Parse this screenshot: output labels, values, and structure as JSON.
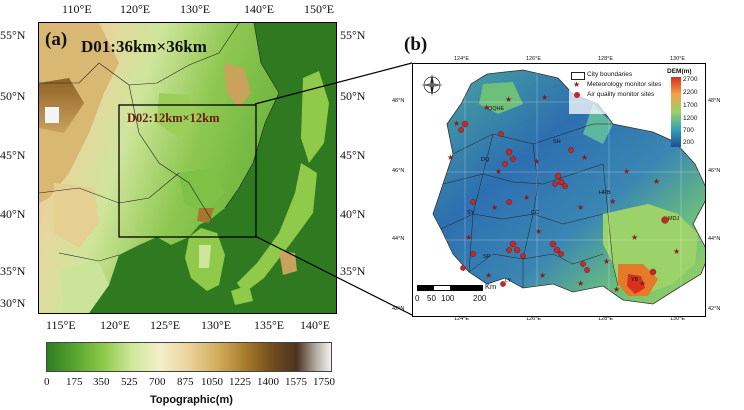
{
  "panel_a": {
    "label": "(a)",
    "d01_label": "D01:36km×36km",
    "d02_label": "D02:12km×12km",
    "top_lon_ticks": [
      "110°E",
      "120°E",
      "130°E",
      "140°E",
      "150°E"
    ],
    "bottom_lon_ticks": [
      "115°E",
      "120°E",
      "125°E",
      "130°E",
      "135°E",
      "140°E"
    ],
    "left_lat_ticks": [
      "55°N",
      "50°N",
      "45°N",
      "40°N",
      "35°N",
      "30°N"
    ],
    "right_lat_ticks": [
      "55°N",
      "50°N",
      "45°N",
      "40°N",
      "35°N"
    ],
    "colorbar_ticks": [
      "0",
      "175",
      "350",
      "525",
      "700",
      "875",
      "1050",
      "1225",
      "1400",
      "1575",
      "1750"
    ],
    "colorbar_title": "Topographic(m)"
  },
  "panel_b": {
    "label": "(b)",
    "top_lon_ticks": [
      "124°E",
      "126°E",
      "128°E",
      "130°E"
    ],
    "bottom_lon_ticks": [
      "124°E",
      "126°E",
      "128°E",
      "130°E"
    ],
    "left_lat_ticks": [
      "48°N",
      "46°N",
      "44°N",
      "42°N"
    ],
    "right_lat_ticks": [
      "48°N",
      "46°N",
      "44°N",
      "42°N"
    ],
    "legend": {
      "city_boundaries": "City boundaries",
      "meteorology_sites": "Meteorology monitor sites",
      "air_quality_sites": "Air quality monitor sites"
    },
    "dem": {
      "title": "DEM(m)",
      "ticks": [
        "2700",
        "2200",
        "1700",
        "1200",
        "700",
        "200"
      ]
    },
    "scale": {
      "unit": "Km",
      "ticks": [
        "0",
        "50",
        "100",
        "200"
      ]
    },
    "north_arrow": "compass",
    "city_labels": [
      "QQHE",
      "SH",
      "DQ",
      "HRB",
      "MDJ",
      "SY",
      "CC",
      "SP",
      "YB",
      "LY"
    ],
    "colors": {
      "lowland": "#2d6fb0",
      "midland": "#5eb7a0",
      "highland": "#e57a2b",
      "site_star": "#8b1a1a",
      "site_dot": "#c62828"
    }
  }
}
